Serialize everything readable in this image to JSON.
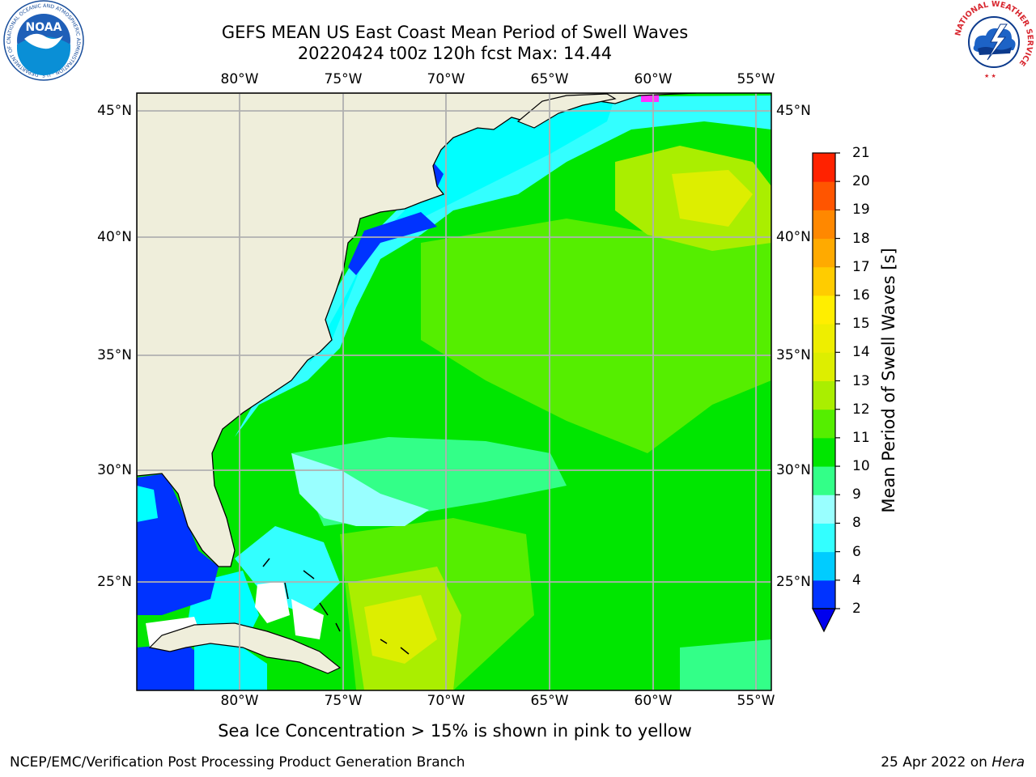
{
  "title_line1": "GEFS MEAN US East Coast Mean Period of Swell Waves",
  "title_line2": "20220424 t00z 120h fcst   Max: 14.44",
  "map": {
    "longitude_ticks": [
      "80°W",
      "75°W",
      "70°W",
      "65°W",
      "60°W",
      "55°W"
    ],
    "latitude_ticks": [
      "45°N",
      "40°N",
      "35°N",
      "30°N",
      "25°N"
    ],
    "colors": {
      "land": "#efeedb",
      "grid": "#b0b0b0",
      "coast": "#000000",
      "no_data": "#ffffff",
      "sea_ice": "#ff33ff"
    }
  },
  "colorbar": {
    "title": "Mean Period of Swell Waves [s]",
    "labels": [
      "2",
      "4",
      "6",
      "8",
      "9",
      "10",
      "11",
      "12",
      "13",
      "14",
      "15",
      "16",
      "17",
      "18",
      "19",
      "20",
      "21"
    ],
    "colors": [
      "#0033ff",
      "#00ccff",
      "#33ffff",
      "#99ffff",
      "#33ff88",
      "#00e600",
      "#55ee00",
      "#aaee00",
      "#ddee00",
      "#eeee00",
      "#ffee00",
      "#ffcc00",
      "#ffaa00",
      "#ff8800",
      "#ff5500",
      "#ff2200",
      "#ff0000"
    ],
    "under_color": "#0000ee"
  },
  "subtitle": "Sea Ice Concentration > 15% is shown in pink to yellow",
  "footer": {
    "left": "NCEP/EMC/Verification Post Processing Product Generation Branch",
    "right_date": "25 Apr 2022 on",
    "right_host": "Hera"
  },
  "logos": {
    "noaa_text": "NOAA",
    "noaa_ring": "NATIONAL OCEANIC AND ATMOSPHERIC ADMINISTRATION · U.S. DEPARTMENT OF COMMERCE",
    "nws_ring": "NATIONAL WEATHER SERVICE"
  }
}
